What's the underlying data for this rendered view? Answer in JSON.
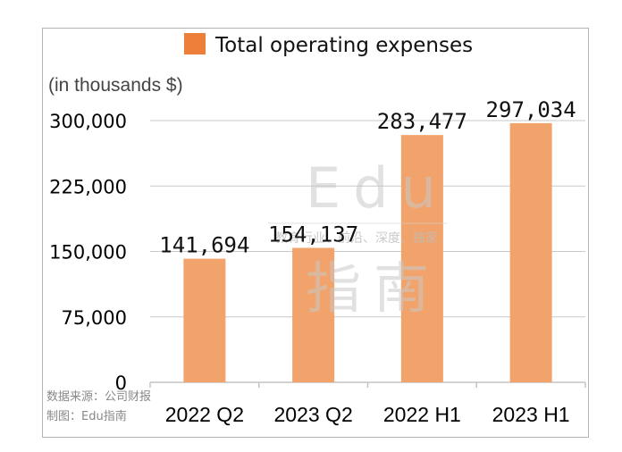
{
  "chart_data": {
    "type": "bar",
    "title": "",
    "legend": [
      "Total operating expenses"
    ],
    "unit_label": "(in thousands $)",
    "categories": [
      "2022 Q2",
      "2023 Q2",
      "2022 H1",
      "2023 H1"
    ],
    "values": [
      141694,
      154137,
      283477,
      297034
    ],
    "value_labels": [
      "141,694",
      "154,137",
      "283,477",
      "297,034"
    ],
    "ylim": [
      0,
      300000
    ],
    "yticks": [
      0,
      75000,
      150000,
      225000,
      300000
    ],
    "ytick_labels": [
      "0",
      "75,000",
      "150,000",
      "225,000",
      "300,000"
    ],
    "grid": true,
    "xlabel": "",
    "ylabel": ""
  },
  "colors": {
    "bar": "#f2a36b",
    "legend_swatch": "#ee7f3a",
    "grid": "#c8c8c8"
  },
  "source": {
    "line1": "数据来源：公司财报",
    "line2": "制图：Edu指南"
  },
  "watermark": {
    "title_top": "Edu",
    "title_bottom": "指南",
    "tagline": "教育行业、前沿、深度、独家"
  }
}
